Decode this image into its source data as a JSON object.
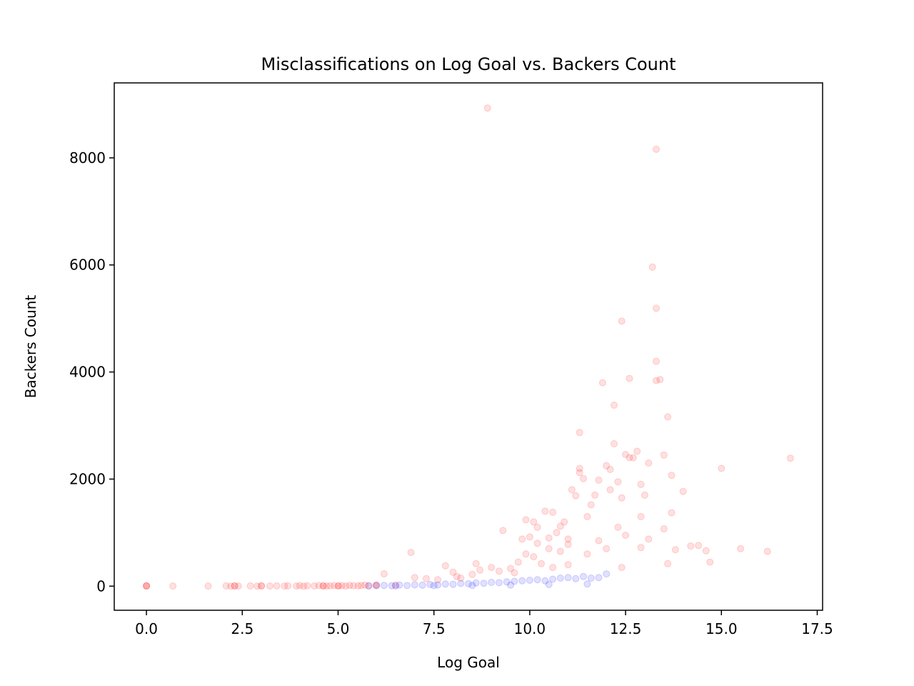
{
  "chart_data": {
    "type": "scatter",
    "title": "Misclassifications on Log Goal vs. Backers Count",
    "xlabel": "Log Goal",
    "ylabel": "Backers Count",
    "xlim": [
      -0.84,
      17.64
    ],
    "ylim": [
      -450,
      9400
    ],
    "xticks": [
      0.0,
      2.5,
      5.0,
      7.5,
      10.0,
      12.5,
      15.0,
      17.5
    ],
    "xtick_labels": [
      "0.0",
      "2.5",
      "5.0",
      "7.5",
      "10.0",
      "12.5",
      "15.0",
      "17.5"
    ],
    "yticks": [
      0,
      2000,
      4000,
      6000,
      8000
    ],
    "ytick_labels": [
      "0",
      "2000",
      "4000",
      "6000",
      "8000"
    ],
    "grid": false,
    "legend": "none",
    "point_opacity": 0.12,
    "series": [
      {
        "color": "#ff0000",
        "points": [
          [
            0.0,
            5
          ],
          [
            0.0,
            0
          ],
          [
            0.0,
            10
          ],
          [
            0.69,
            2
          ],
          [
            1.61,
            3
          ],
          [
            2.08,
            5
          ],
          [
            2.2,
            0
          ],
          [
            2.3,
            8
          ],
          [
            2.3,
            2
          ],
          [
            2.4,
            3
          ],
          [
            2.71,
            5
          ],
          [
            2.89,
            0
          ],
          [
            3.0,
            4
          ],
          [
            3.0,
            8
          ],
          [
            3.22,
            2
          ],
          [
            3.4,
            5
          ],
          [
            3.6,
            3
          ],
          [
            3.69,
            7
          ],
          [
            3.91,
            2
          ],
          [
            4.0,
            10
          ],
          [
            4.1,
            0
          ],
          [
            4.2,
            6
          ],
          [
            4.38,
            4
          ],
          [
            4.5,
            12
          ],
          [
            4.61,
            2
          ],
          [
            4.61,
            8
          ],
          [
            4.7,
            3
          ],
          [
            4.79,
            5
          ],
          [
            4.9,
            10
          ],
          [
            5.0,
            2
          ],
          [
            5.01,
            6
          ],
          [
            5.1,
            9
          ],
          [
            5.2,
            3
          ],
          [
            5.3,
            15
          ],
          [
            5.4,
            8
          ],
          [
            5.52,
            5
          ],
          [
            5.6,
            12
          ],
          [
            5.7,
            20
          ],
          [
            5.8,
            6
          ],
          [
            5.99,
            10
          ],
          [
            6.0,
            25
          ],
          [
            6.2,
            230
          ],
          [
            6.5,
            18
          ],
          [
            6.9,
            630
          ],
          [
            7.0,
            160
          ],
          [
            7.3,
            140
          ],
          [
            7.6,
            120
          ],
          [
            7.8,
            380
          ],
          [
            8.0,
            260
          ],
          [
            8.1,
            180
          ],
          [
            8.2,
            150
          ],
          [
            8.5,
            220
          ],
          [
            8.6,
            420
          ],
          [
            8.7,
            300
          ],
          [
            8.9,
            8930
          ],
          [
            9.0,
            350
          ],
          [
            9.2,
            280
          ],
          [
            9.3,
            1040
          ],
          [
            9.5,
            330
          ],
          [
            9.6,
            250
          ],
          [
            9.7,
            450
          ],
          [
            9.9,
            1240
          ],
          [
            9.9,
            600
          ],
          [
            10.0,
            920
          ],
          [
            10.1,
            550
          ],
          [
            10.1,
            1200
          ],
          [
            10.2,
            800
          ],
          [
            10.3,
            420
          ],
          [
            10.4,
            1400
          ],
          [
            10.5,
            700
          ],
          [
            10.6,
            1380
          ],
          [
            10.6,
            350
          ],
          [
            10.7,
            1000
          ],
          [
            10.8,
            650
          ],
          [
            10.9,
            1200
          ],
          [
            11.0,
            880
          ],
          [
            11.0,
            400
          ],
          [
            11.1,
            1800
          ],
          [
            11.2,
            1690
          ],
          [
            11.3,
            2870
          ],
          [
            11.3,
            2200
          ],
          [
            11.3,
            2120
          ],
          [
            11.4,
            2010
          ],
          [
            11.5,
            1300
          ],
          [
            11.6,
            1520
          ],
          [
            11.7,
            1700
          ],
          [
            11.8,
            1980
          ],
          [
            11.9,
            3800
          ],
          [
            12.0,
            2250
          ],
          [
            12.1,
            2180
          ],
          [
            12.1,
            1800
          ],
          [
            12.2,
            3380
          ],
          [
            12.2,
            2660
          ],
          [
            12.3,
            1950
          ],
          [
            12.4,
            1650
          ],
          [
            12.4,
            4950
          ],
          [
            12.5,
            2460
          ],
          [
            12.6,
            2400
          ],
          [
            12.6,
            3880
          ],
          [
            12.7,
            2400
          ],
          [
            12.8,
            2520
          ],
          [
            12.9,
            1300
          ],
          [
            12.9,
            1900
          ],
          [
            13.0,
            1700
          ],
          [
            13.1,
            2300
          ],
          [
            13.2,
            5960
          ],
          [
            13.3,
            5190
          ],
          [
            13.3,
            4200
          ],
          [
            13.3,
            3840
          ],
          [
            13.3,
            8160
          ],
          [
            13.4,
            3860
          ],
          [
            13.5,
            2450
          ],
          [
            13.6,
            3160
          ],
          [
            13.7,
            2070
          ],
          [
            13.7,
            1370
          ],
          [
            14.0,
            1770
          ],
          [
            14.2,
            750
          ],
          [
            14.4,
            760
          ],
          [
            14.6,
            660
          ],
          [
            14.7,
            450
          ],
          [
            15.0,
            2200
          ],
          [
            15.5,
            700
          ],
          [
            16.2,
            650
          ],
          [
            16.8,
            2390
          ],
          [
            13.5,
            1070
          ],
          [
            13.1,
            880
          ],
          [
            12.9,
            720
          ],
          [
            12.5,
            950
          ],
          [
            12.3,
            1100
          ],
          [
            12.0,
            700
          ],
          [
            11.8,
            850
          ],
          [
            11.5,
            600
          ],
          [
            11.0,
            780
          ],
          [
            10.8,
            1120
          ],
          [
            10.5,
            900
          ],
          [
            10.2,
            1100
          ],
          [
            9.8,
            880
          ],
          [
            13.6,
            420
          ],
          [
            13.8,
            680
          ],
          [
            12.4,
            350
          ]
        ]
      },
      {
        "color": "#0000ff",
        "points": [
          [
            5.8,
            5
          ],
          [
            6.0,
            10
          ],
          [
            6.2,
            15
          ],
          [
            6.4,
            8
          ],
          [
            6.6,
            20
          ],
          [
            6.8,
            12
          ],
          [
            7.0,
            25
          ],
          [
            7.2,
            18
          ],
          [
            7.4,
            30
          ],
          [
            7.6,
            22
          ],
          [
            7.8,
            40
          ],
          [
            8.0,
            35
          ],
          [
            8.2,
            50
          ],
          [
            8.4,
            45
          ],
          [
            8.6,
            60
          ],
          [
            8.8,
            55
          ],
          [
            9.0,
            70
          ],
          [
            9.2,
            65
          ],
          [
            9.4,
            80
          ],
          [
            9.6,
            90
          ],
          [
            9.8,
            100
          ],
          [
            10.0,
            110
          ],
          [
            10.2,
            120
          ],
          [
            10.4,
            100
          ],
          [
            10.6,
            130
          ],
          [
            10.8,
            150
          ],
          [
            11.0,
            160
          ],
          [
            11.2,
            140
          ],
          [
            11.4,
            180
          ],
          [
            11.6,
            150
          ],
          [
            11.8,
            160
          ],
          [
            12.0,
            230
          ],
          [
            11.5,
            40
          ],
          [
            10.5,
            30
          ],
          [
            9.5,
            20
          ],
          [
            8.5,
            15
          ],
          [
            7.5,
            10
          ],
          [
            6.5,
            5
          ]
        ]
      }
    ]
  }
}
